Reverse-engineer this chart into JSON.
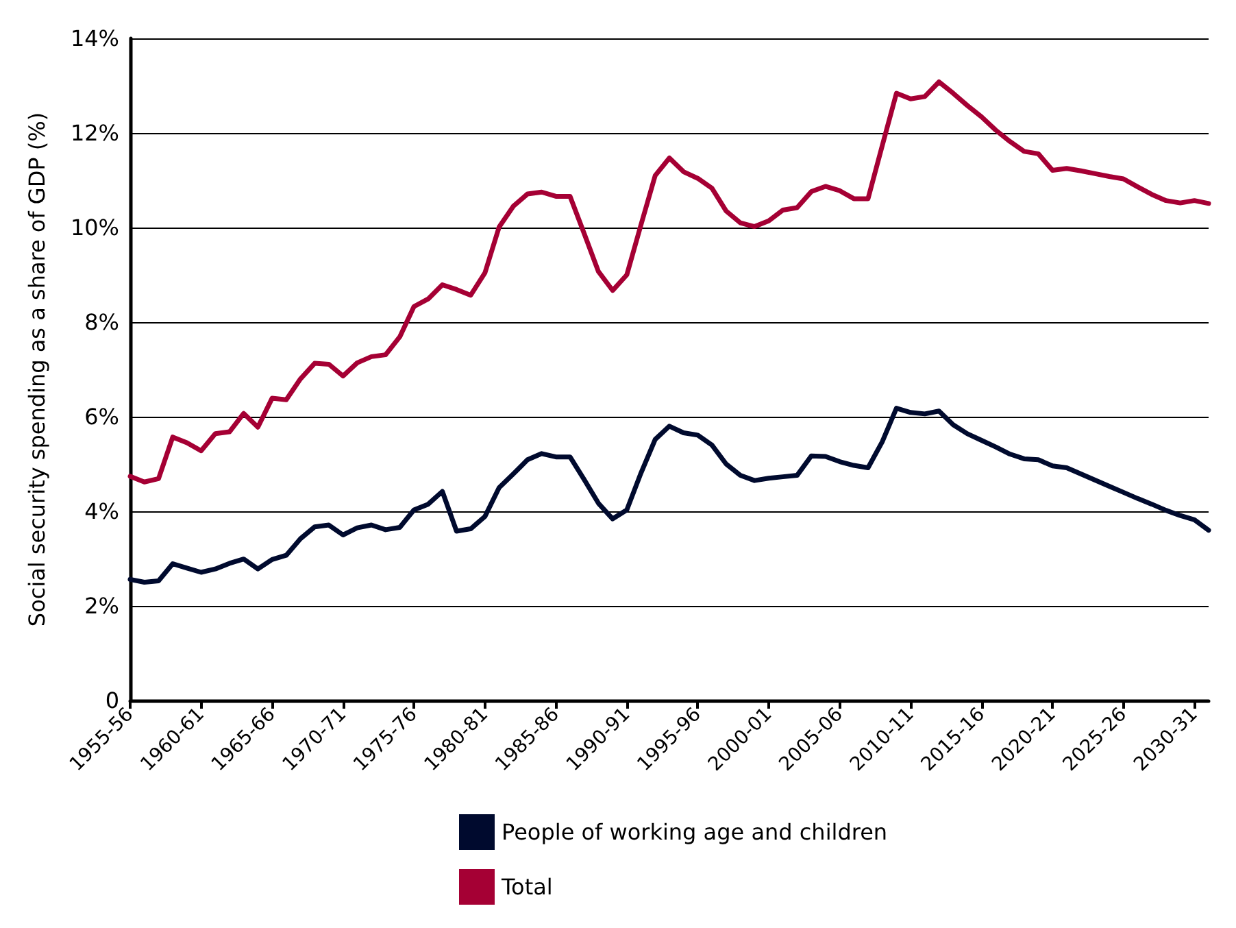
{
  "chart_data": {
    "type": "line",
    "ylabel": "Social security spending as a share of GDP (%)",
    "categories": [
      "1955-56",
      null,
      null,
      null,
      null,
      "1960-61",
      null,
      null,
      null,
      null,
      "1965-66",
      null,
      null,
      null,
      null,
      "1970-71",
      null,
      null,
      null,
      null,
      "1975-76",
      null,
      null,
      null,
      null,
      "1980-81",
      null,
      null,
      null,
      null,
      "1985-86",
      null,
      null,
      null,
      null,
      "1990-91",
      null,
      null,
      null,
      null,
      "1995-96",
      null,
      null,
      null,
      null,
      "2000-01",
      null,
      null,
      null,
      null,
      "2005-06",
      null,
      null,
      null,
      null,
      "2010-11",
      null,
      null,
      null,
      null,
      "2015-16",
      null,
      null,
      null,
      null,
      "2020-21",
      null,
      null,
      null,
      null,
      "2025-26",
      null,
      null,
      null,
      null,
      "2030-31",
      null
    ],
    "series": [
      {
        "name": "People of working age and children",
        "color": "#000a2e",
        "values": [
          2.56,
          2.5,
          2.53,
          2.89,
          2.8,
          2.71,
          2.78,
          2.9,
          2.99,
          2.78,
          2.98,
          3.07,
          3.42,
          3.67,
          3.71,
          3.5,
          3.65,
          3.71,
          3.61,
          3.66,
          4.03,
          4.15,
          4.42,
          3.58,
          3.63,
          3.89,
          4.5,
          4.79,
          5.09,
          5.22,
          5.15,
          5.15,
          4.67,
          4.17,
          3.84,
          4.03,
          4.81,
          5.52,
          5.8,
          5.66,
          5.61,
          5.4,
          5.0,
          4.76,
          4.65,
          4.7,
          4.73,
          4.76,
          5.17,
          5.16,
          5.05,
          4.97,
          4.92,
          5.47,
          6.18,
          6.09,
          6.06,
          6.12,
          5.83,
          5.64,
          5.5,
          5.36,
          5.21,
          5.11,
          5.09,
          4.96,
          4.92,
          4.79,
          4.66,
          4.53,
          4.4,
          4.27,
          4.15,
          4.02,
          3.91,
          3.82,
          3.6
        ]
      },
      {
        "name": "Total",
        "color": "#a50034",
        "values": [
          4.74,
          4.62,
          4.69,
          5.57,
          5.45,
          5.28,
          5.64,
          5.68,
          6.07,
          5.78,
          6.39,
          6.36,
          6.8,
          7.13,
          7.11,
          6.86,
          7.14,
          7.27,
          7.31,
          7.69,
          8.33,
          8.49,
          8.79,
          8.69,
          8.57,
          9.04,
          10.01,
          10.45,
          10.71,
          10.75,
          10.66,
          10.66,
          9.87,
          9.07,
          8.67,
          9.0,
          10.06,
          11.1,
          11.47,
          11.18,
          11.04,
          10.83,
          10.35,
          10.1,
          10.02,
          10.14,
          10.37,
          10.42,
          10.76,
          10.87,
          10.78,
          10.61,
          10.61,
          11.73,
          12.84,
          12.72,
          12.77,
          13.08,
          12.84,
          12.58,
          12.34,
          12.06,
          11.82,
          11.61,
          11.56,
          11.21,
          11.25,
          11.2,
          11.14,
          11.08,
          11.03,
          10.86,
          10.7,
          10.57,
          10.52,
          10.57,
          10.51
        ]
      }
    ],
    "ylim": [
      0,
      14
    ],
    "yticks": [
      0,
      {
        "value": 2,
        "label": "2%"
      },
      {
        "value": 4,
        "label": "4%"
      },
      {
        "value": 6,
        "label": "6%"
      },
      {
        "value": 8,
        "label": "8%"
      },
      {
        "value": 10,
        "label": "10%"
      },
      {
        "value": 12,
        "label": "12%"
      },
      {
        "value": 14,
        "label": "14%"
      }
    ],
    "grid": "y",
    "legend": "bottom",
    "marker": "none",
    "line_style": "solid"
  }
}
